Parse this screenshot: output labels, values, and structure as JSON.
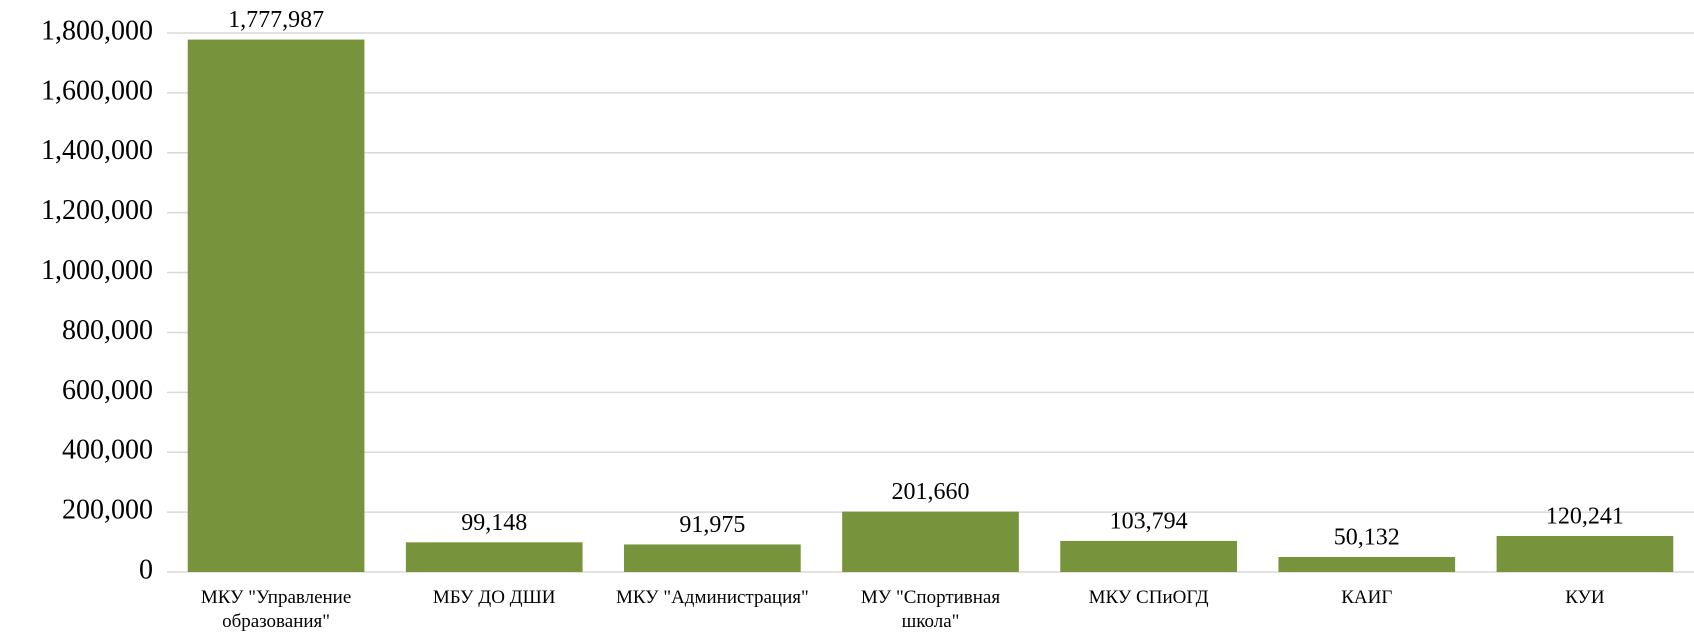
{
  "chart_data": {
    "type": "bar",
    "categories": [
      "МКУ \"Управление образования\"",
      "МБУ ДО ДШИ",
      "МКУ \"Администрация\"",
      "МУ \"Спортивная школа\"",
      "МКУ СПиОГД",
      "КАИГ",
      "КУИ"
    ],
    "values": [
      1777987,
      99148,
      91975,
      201660,
      103794,
      50132,
      120241
    ],
    "value_labels": [
      "1,777,987",
      "99,148",
      "91,975",
      "201,660",
      "103,794",
      "50,132",
      "120,241"
    ],
    "color": "#77933c",
    "ylim": [
      0,
      1800000
    ],
    "yticks": [
      0,
      {
        "value": 200000,
        "label": "200,000"
      },
      {
        "value": 400000,
        "label": "400,000"
      },
      {
        "value": 600000,
        "label": "600,000"
      },
      {
        "value": 800000,
        "label": "800,000"
      },
      {
        "value": 1000000,
        "label": "1,000,000"
      },
      {
        "value": 1200000,
        "label": "1,200,000"
      },
      {
        "value": 1400000,
        "label": "1,400,000"
      },
      {
        "value": 1600000,
        "label": "1,600,000"
      },
      {
        "value": 1800000,
        "label": "1,800,000"
      }
    ],
    "grid": true
  }
}
